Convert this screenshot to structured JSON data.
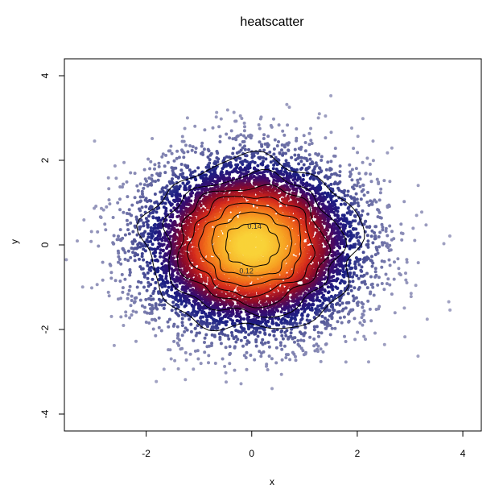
{
  "chart_data": {
    "type": "scatter",
    "title": "heatscatter",
    "xlabel": "x",
    "ylabel": "y",
    "xlim": [
      -3.55,
      4.35
    ],
    "ylim": [
      -4.4,
      4.4
    ],
    "x_ticks": [
      -2,
      0,
      2,
      4
    ],
    "y_ticks": [
      -4,
      -2,
      0,
      2,
      4
    ],
    "x_tick_labels": [
      "-2",
      "0",
      "2",
      "4"
    ],
    "y_tick_labels": [
      "-4",
      "-2",
      "0",
      "2",
      "4"
    ],
    "grid": false,
    "legend": "none",
    "points": {
      "count": 10000,
      "distribution": "bivariate normal",
      "mean": [
        0,
        0
      ],
      "sd": [
        1,
        1
      ],
      "color_by": "2D kernel density"
    },
    "density_colors": [
      "#a2a3c3",
      "#5a5e9c",
      "#1b1f84",
      "#3a0b6e",
      "#8b0a2a",
      "#d3291c",
      "#f0691a",
      "#f7a323",
      "#f9d238"
    ],
    "contours": {
      "levels": [
        0.02,
        0.04,
        0.06,
        0.08,
        0.1,
        0.12,
        0.14
      ],
      "labels_shown": [
        "0.14",
        "0.12"
      ],
      "color": "#000000"
    },
    "annotations": []
  }
}
